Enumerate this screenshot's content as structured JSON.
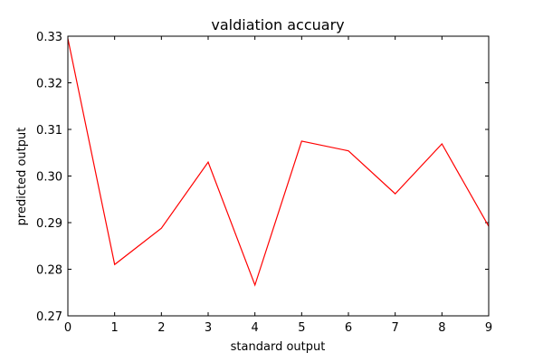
{
  "chart_data": {
    "type": "line",
    "title": "valdiation accuary",
    "xlabel": "standard output",
    "ylabel": "predicted output",
    "xlim": [
      0,
      9
    ],
    "ylim": [
      0.27,
      0.33
    ],
    "x_ticks": [
      "0",
      "1",
      "2",
      "3",
      "4",
      "5",
      "6",
      "7",
      "8",
      "9"
    ],
    "y_ticks": [
      "0.27",
      "0.28",
      "0.29",
      "0.30",
      "0.31",
      "0.32",
      "0.33"
    ],
    "grid": false,
    "series": [
      {
        "color": "#ff0000",
        "x": [
          0,
          1,
          2,
          3,
          4,
          5,
          6,
          7,
          8,
          9
        ],
        "y": [
          0.3295,
          0.281,
          0.2888,
          0.303,
          0.2766,
          0.3075,
          0.3054,
          0.2962,
          0.3069,
          0.2892
        ]
      }
    ]
  }
}
